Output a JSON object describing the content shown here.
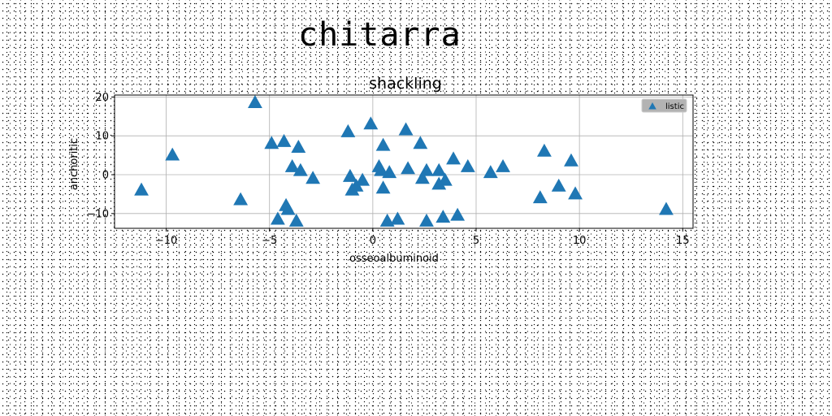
{
  "page_title": "chitarra",
  "chart_data": {
    "type": "scatter",
    "title": "shackling",
    "xlabel": "osseoalbuminoid",
    "ylabel": "anchoritic",
    "xlim": [
      -12.5,
      15.5
    ],
    "ylim": [
      -13.8,
      20.5
    ],
    "x_ticks": [
      -10,
      -5,
      0,
      5,
      10,
      15
    ],
    "y_ticks": [
      -10,
      0,
      10,
      20
    ],
    "x_tick_labels": [
      "−10",
      "−5",
      "0",
      "5",
      "10",
      "15"
    ],
    "y_tick_labels": [
      "−10",
      "0",
      "10",
      "20"
    ],
    "grid": true,
    "legend_position": "top-right",
    "marker": "triangle",
    "color": "#1f77b4",
    "series": [
      {
        "name": "listic",
        "points": [
          [
            -11.2,
            -4
          ],
          [
            -9.7,
            5
          ],
          [
            -6.4,
            -6.5
          ],
          [
            -5.7,
            18.5
          ],
          [
            -4.9,
            8
          ],
          [
            -4.6,
            -11.5
          ],
          [
            -4.3,
            8.5
          ],
          [
            -4.2,
            -8
          ],
          [
            -4.1,
            -9
          ],
          [
            -3.9,
            2
          ],
          [
            -3.7,
            -12
          ],
          [
            -3.6,
            7
          ],
          [
            -3.5,
            1
          ],
          [
            -2.9,
            -1
          ],
          [
            -1.2,
            11
          ],
          [
            -1.1,
            -0.5
          ],
          [
            -1.0,
            -4
          ],
          [
            -0.8,
            -3
          ],
          [
            -0.5,
            -1.5
          ],
          [
            -0.1,
            13
          ],
          [
            0.3,
            2
          ],
          [
            0.4,
            1
          ],
          [
            0.5,
            -3.5
          ],
          [
            0.5,
            7.5
          ],
          [
            0.7,
            -12
          ],
          [
            0.8,
            0.5
          ],
          [
            1.2,
            -11.5
          ],
          [
            1.6,
            11.5
          ],
          [
            1.7,
            1.5
          ],
          [
            2.3,
            8
          ],
          [
            2.4,
            -1
          ],
          [
            2.6,
            -12
          ],
          [
            2.6,
            1
          ],
          [
            3.2,
            1
          ],
          [
            3.2,
            -2.5
          ],
          [
            3.5,
            -1.5
          ],
          [
            3.4,
            -11
          ],
          [
            3.9,
            4
          ],
          [
            4.1,
            -10.5
          ],
          [
            4.6,
            2
          ],
          [
            5.7,
            0.5
          ],
          [
            6.3,
            2
          ],
          [
            8.1,
            -6
          ],
          [
            8.3,
            6
          ],
          [
            9.0,
            -3
          ],
          [
            9.6,
            3.5
          ],
          [
            9.8,
            -5
          ],
          [
            14.2,
            -9
          ]
        ]
      }
    ]
  }
}
